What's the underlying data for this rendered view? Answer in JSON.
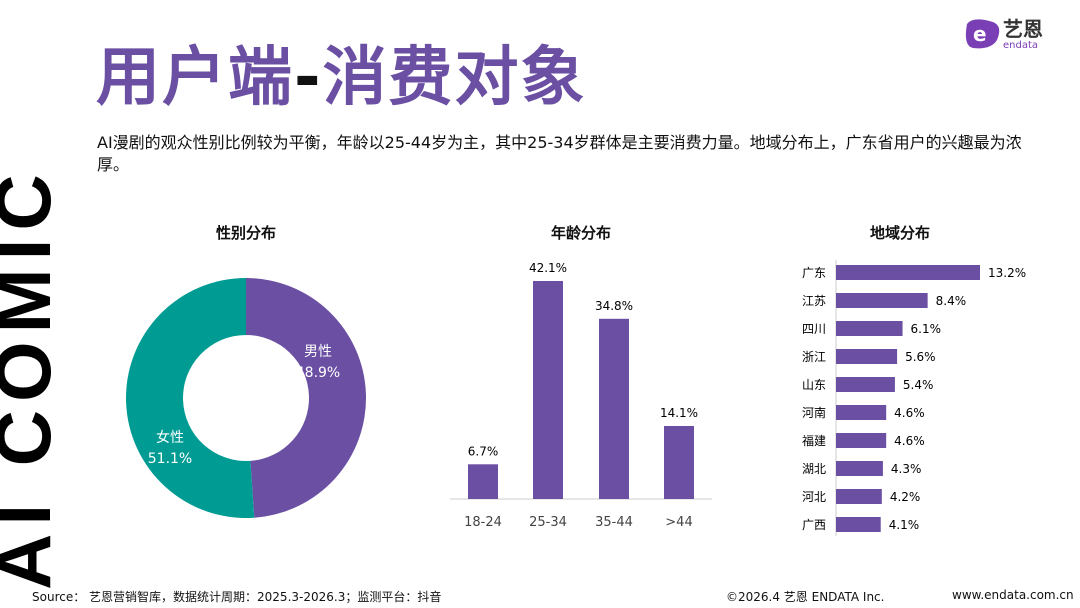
{
  "side_text": "AI COMIC",
  "title": {
    "main": "用户端",
    "dash": "-",
    "rest": "消费对象"
  },
  "subtitle": "AI漫剧的观众性别比例较为平衡，年龄以25-44岁为主，其中25-34岁群体是主要消费力量。地域分布上，广东省用户的兴趣最为浓厚。",
  "logo": {
    "cn": "艺恩",
    "en": "endata"
  },
  "colors": {
    "purple": "#6a4fa3",
    "teal": "#009c94"
  },
  "chart_data": [
    {
      "type": "pie",
      "title": "性别分布",
      "donut": true,
      "categories": [
        "男性",
        "女性"
      ],
      "values": [
        48.9,
        51.1
      ],
      "labels": [
        "48.9%",
        "51.1%"
      ],
      "colors": [
        "#6a4fa3",
        "#009c94"
      ]
    },
    {
      "type": "bar",
      "title": "年龄分布",
      "categories": [
        "18-24",
        "25-34",
        "35-44",
        ">44"
      ],
      "values": [
        6.7,
        42.1,
        34.8,
        14.1
      ],
      "labels": [
        "6.7%",
        "42.1%",
        "34.8%",
        "14.1%"
      ]
    },
    {
      "type": "bar",
      "orientation": "horizontal",
      "title": "地域分布",
      "categories": [
        "广东",
        "江苏",
        "四川",
        "浙江",
        "山东",
        "河南",
        "福建",
        "湖北",
        "河北",
        "广西"
      ],
      "values": [
        13.2,
        8.4,
        6.1,
        5.6,
        5.4,
        4.6,
        4.6,
        4.3,
        4.2,
        4.1
      ],
      "labels": [
        "13.2%",
        "8.4%",
        "6.1%",
        "5.6%",
        "5.4%",
        "4.6%",
        "4.6%",
        "4.3%",
        "4.2%",
        "4.1%"
      ]
    }
  ],
  "footer": {
    "source": "Source： 艺恩营销智库，数据统计周期：2025.3-2026.3；监测平台：抖音",
    "copyright": "©2026.4 艺恩 ENDATA Inc.",
    "url": "www.endata.com.cn"
  }
}
